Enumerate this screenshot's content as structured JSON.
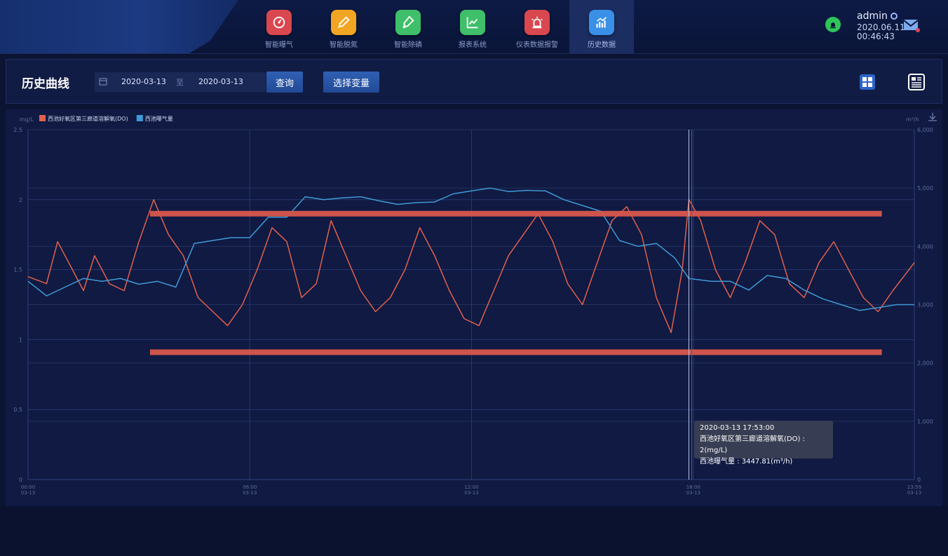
{
  "nav": {
    "items": [
      {
        "label": "智能曝气",
        "color": "#d9474f",
        "icon": "gauge-icon"
      },
      {
        "label": "智能脱氮",
        "color": "#f0a623",
        "icon": "dropper-icon"
      },
      {
        "label": "智能除磷",
        "color": "#3fbf6a",
        "icon": "flask-icon"
      },
      {
        "label": "报表系统",
        "color": "#3fbf6a",
        "icon": "line-chart-icon"
      },
      {
        "label": "仪表数据报警",
        "color": "#d9474f",
        "icon": "alarm-light-icon"
      },
      {
        "label": "历史数据",
        "color": "#3a8fe6",
        "icon": "bar-chart-icon"
      }
    ],
    "active_index": 5
  },
  "user": {
    "name": "admin",
    "date": "2020.06.11",
    "time": "00:46:43"
  },
  "toolbar": {
    "title": "历史曲线",
    "start_date": "2020-03-13",
    "separator": "至",
    "end_date": "2020-03-13",
    "query_label": "查询",
    "select_label": "选择变量"
  },
  "tooltip": {
    "time": "2020-03-13 17:53:00",
    "line1": "西池好氧区第三廊道溶解氧(DO) : 2(mg/L)",
    "line2": "西池曝气量 : 3447.81(m³/h)"
  },
  "chart_data": {
    "type": "line",
    "legend": [
      "西池好氧区第三廊道溶解氧(DO)",
      "西池曝气量"
    ],
    "legend_colors": [
      "#e2604d",
      "#3f9ad8"
    ],
    "y_left": {
      "unit": "mg/L",
      "ticks": [
        "0",
        "0.5",
        "1",
        "1.5",
        "2",
        "2.5"
      ],
      "range": [
        0,
        2.5
      ]
    },
    "y_right": {
      "unit": "m³/h",
      "ticks": [
        "0",
        "1,000",
        "2,000",
        "3,000",
        "4,000",
        "5,000",
        "6,000"
      ],
      "range": [
        0,
        6000
      ]
    },
    "x_ticks": [
      {
        "time": "00:00",
        "date": "03-13",
        "hour": 0
      },
      {
        "time": "06:00",
        "date": "03-13",
        "hour": 6
      },
      {
        "time": "12:00",
        "date": "03-13",
        "hour": 12
      },
      {
        "time": "18:00",
        "date": "03-13",
        "hour": 18
      },
      {
        "time": "23:59",
        "date": "03-13",
        "hour": 23.98
      }
    ],
    "cursor_hour": 17.88,
    "reference_lines": [
      1.9,
      0.91
    ],
    "series": [
      {
        "name": "西池好氧区第三廊道溶解氧(DO)",
        "axis": "left",
        "color": "#e2604d",
        "points": [
          [
            0,
            1.45
          ],
          [
            0.5,
            1.4
          ],
          [
            0.8,
            1.7
          ],
          [
            1.2,
            1.5
          ],
          [
            1.5,
            1.35
          ],
          [
            1.8,
            1.6
          ],
          [
            2.2,
            1.4
          ],
          [
            2.6,
            1.35
          ],
          [
            3.0,
            1.7
          ],
          [
            3.4,
            2.0
          ],
          [
            3.8,
            1.75
          ],
          [
            4.2,
            1.6
          ],
          [
            4.6,
            1.3
          ],
          [
            5.0,
            1.2
          ],
          [
            5.4,
            1.1
          ],
          [
            5.8,
            1.25
          ],
          [
            6.2,
            1.5
          ],
          [
            6.6,
            1.8
          ],
          [
            7.0,
            1.7
          ],
          [
            7.4,
            1.3
          ],
          [
            7.8,
            1.4
          ],
          [
            8.2,
            1.85
          ],
          [
            8.6,
            1.6
          ],
          [
            9.0,
            1.35
          ],
          [
            9.4,
            1.2
          ],
          [
            9.8,
            1.3
          ],
          [
            10.2,
            1.5
          ],
          [
            10.6,
            1.8
          ],
          [
            11.0,
            1.6
          ],
          [
            11.4,
            1.35
          ],
          [
            11.8,
            1.15
          ],
          [
            12.2,
            1.1
          ],
          [
            12.6,
            1.35
          ],
          [
            13.0,
            1.6
          ],
          [
            13.4,
            1.75
          ],
          [
            13.8,
            1.9
          ],
          [
            14.2,
            1.7
          ],
          [
            14.6,
            1.4
          ],
          [
            15.0,
            1.25
          ],
          [
            15.4,
            1.55
          ],
          [
            15.8,
            1.85
          ],
          [
            16.2,
            1.95
          ],
          [
            16.6,
            1.75
          ],
          [
            17.0,
            1.3
          ],
          [
            17.4,
            1.05
          ],
          [
            17.7,
            1.5
          ],
          [
            17.88,
            2.0
          ],
          [
            18.2,
            1.85
          ],
          [
            18.6,
            1.5
          ],
          [
            19.0,
            1.3
          ],
          [
            19.4,
            1.55
          ],
          [
            19.8,
            1.85
          ],
          [
            20.2,
            1.75
          ],
          [
            20.6,
            1.4
          ],
          [
            21.0,
            1.3
          ],
          [
            21.4,
            1.55
          ],
          [
            21.8,
            1.7
          ],
          [
            22.2,
            1.5
          ],
          [
            22.6,
            1.3
          ],
          [
            23.0,
            1.2
          ],
          [
            23.4,
            1.35
          ],
          [
            23.98,
            1.55
          ]
        ]
      },
      {
        "name": "西池曝气量",
        "axis": "right",
        "color": "#3f9ad8",
        "points": [
          [
            0,
            3400
          ],
          [
            0.5,
            3150
          ],
          [
            1.0,
            3300
          ],
          [
            1.5,
            3450
          ],
          [
            2.0,
            3400
          ],
          [
            2.5,
            3450
          ],
          [
            3.0,
            3350
          ],
          [
            3.5,
            3400
          ],
          [
            4.0,
            3300
          ],
          [
            4.5,
            4050
          ],
          [
            5.0,
            4100
          ],
          [
            5.5,
            4150
          ],
          [
            6.0,
            4150
          ],
          [
            6.5,
            4500
          ],
          [
            7.0,
            4500
          ],
          [
            7.5,
            4850
          ],
          [
            8.0,
            4800
          ],
          [
            8.5,
            4830
          ],
          [
            9.0,
            4850
          ],
          [
            9.5,
            4780
          ],
          [
            10.0,
            4720
          ],
          [
            10.5,
            4750
          ],
          [
            11.0,
            4760
          ],
          [
            11.5,
            4900
          ],
          [
            12.0,
            4950
          ],
          [
            12.5,
            5000
          ],
          [
            13.0,
            4940
          ],
          [
            13.5,
            4960
          ],
          [
            14.0,
            4950
          ],
          [
            14.5,
            4800
          ],
          [
            15.0,
            4700
          ],
          [
            15.5,
            4600
          ],
          [
            16.0,
            4100
          ],
          [
            16.5,
            4000
          ],
          [
            17.0,
            4050
          ],
          [
            17.5,
            3800
          ],
          [
            17.88,
            3447.81
          ],
          [
            18.5,
            3400
          ],
          [
            19.0,
            3400
          ],
          [
            19.5,
            3250
          ],
          [
            20.0,
            3500
          ],
          [
            20.5,
            3450
          ],
          [
            21.0,
            3250
          ],
          [
            21.5,
            3100
          ],
          [
            22.0,
            3000
          ],
          [
            22.5,
            2900
          ],
          [
            23.0,
            2950
          ],
          [
            23.5,
            3000
          ],
          [
            23.98,
            3000
          ]
        ]
      }
    ]
  }
}
